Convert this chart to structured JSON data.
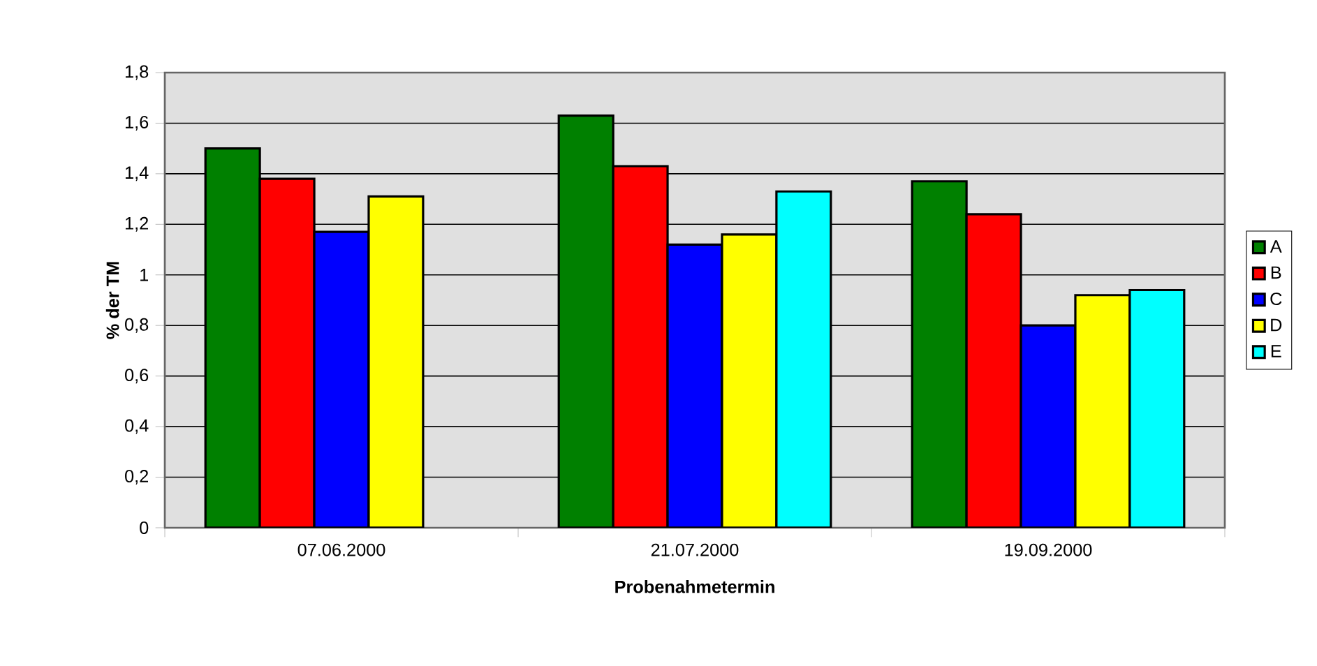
{
  "chart_data": {
    "type": "bar",
    "xlabel": "Probenahmetermin",
    "ylabel": "% der TM",
    "categories": [
      "07.06.2000",
      "21.07.2000",
      "19.09.2000"
    ],
    "series": [
      {
        "name": "A",
        "color": "#008000",
        "values": [
          1.5,
          1.63,
          1.37
        ]
      },
      {
        "name": "B",
        "color": "#ff0000",
        "values": [
          1.38,
          1.43,
          1.24
        ]
      },
      {
        "name": "C",
        "color": "#0000ff",
        "values": [
          1.17,
          1.12,
          0.8
        ]
      },
      {
        "name": "D",
        "color": "#ffff00",
        "values": [
          1.31,
          1.16,
          0.92
        ]
      },
      {
        "name": "E",
        "color": "#00ffff",
        "values": [
          null,
          1.33,
          0.94
        ]
      }
    ],
    "ylim": [
      0,
      1.8
    ],
    "yticks": [
      0,
      {
        "value": 0.2,
        "label": "0,2"
      },
      {
        "value": 0.4,
        "label": "0,4"
      },
      {
        "value": 0.6,
        "label": "0,6"
      },
      {
        "value": 0.8,
        "label": "0,8"
      },
      1,
      {
        "value": 1.2,
        "label": "1,2"
      },
      {
        "value": 1.4,
        "label": "1,4"
      },
      {
        "value": 1.6,
        "label": "1,6"
      },
      {
        "value": 1.8,
        "label": "1,8"
      }
    ],
    "grid": "y",
    "legend": "right"
  }
}
